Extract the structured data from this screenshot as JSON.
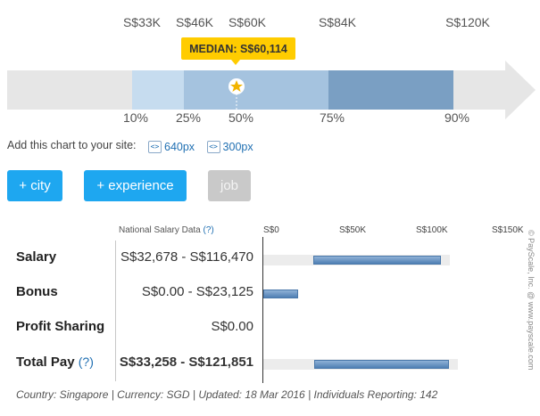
{
  "percentile_chart": {
    "values": [
      "S$33K",
      "S$46K",
      "S$60K",
      "S$84K",
      "S$120K"
    ],
    "percentiles": [
      "10%",
      "25%",
      "50%",
      "75%",
      "90%"
    ],
    "median_label": "MEDIAN: S$60,114",
    "colors": {
      "outer": "#e6e6e6",
      "p10_25": "#c6dcef",
      "p25_75": "#a5c3df",
      "p75_90": "#7a9fc3",
      "median_bubble": "#ffcc00"
    }
  },
  "embed": {
    "label": "Add this chart to your site:",
    "option_640": "640px",
    "option_300": "300px",
    "icon_glyph": "<>"
  },
  "filters": {
    "city": "+ city",
    "experience": "+ experience",
    "job": "job"
  },
  "table": {
    "header_label": "National Salary Data",
    "header_help": "(?)",
    "axis_ticks": [
      "S$0",
      "S$50K",
      "S$100K",
      "S$150K"
    ],
    "rows": [
      {
        "label": "Salary",
        "help": "",
        "range": "S$32,678 - S$116,470",
        "min": 32678,
        "max": 116470,
        "bg": true
      },
      {
        "label": "Bonus",
        "help": "",
        "range": "S$0.00 - S$23,125",
        "min": 0,
        "max": 23125,
        "bg": false
      },
      {
        "label": "Profit Sharing",
        "help": "",
        "range": "S$0.00",
        "min": 0,
        "max": 0,
        "bg": false
      },
      {
        "label": "Total Pay",
        "help": "(?)",
        "range": "S$33,258 - S$121,851",
        "min": 33258,
        "max": 121851,
        "bg": true
      }
    ],
    "axis_max": 150000
  },
  "footer": "Country: Singapore | Currency: SGD | Updated: 18 Mar 2016 | Individuals Reporting: 142",
  "copyright": "© PayScale, Inc. @ www.payscale.com"
}
